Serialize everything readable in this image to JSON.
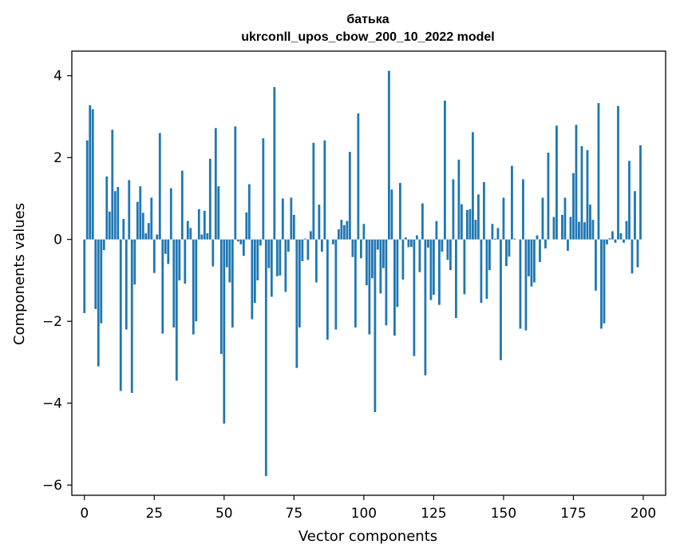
{
  "chart_data": {
    "type": "bar",
    "title": "батька",
    "subtitle": "ukrconll_upos_cbow_200_10_2022 model",
    "xlabel": "Vector components",
    "ylabel": "Components values",
    "xlim": [
      -4.5,
      208
    ],
    "ylim": [
      -6.25,
      4.6
    ],
    "xticks": [
      0,
      25,
      50,
      75,
      100,
      125,
      150,
      175,
      200
    ],
    "yticks": [
      -6,
      -4,
      -2,
      0,
      2,
      4
    ],
    "ytick_labels": [
      "−6",
      "−4",
      "−2",
      "0",
      "2",
      "4"
    ],
    "grid": false,
    "bar_color": "#1f77b4",
    "values": [
      -1.8,
      2.42,
      3.28,
      3.18,
      -1.7,
      -3.1,
      -2.05,
      -0.26,
      1.54,
      0.68,
      2.68,
      1.18,
      1.28,
      -3.7,
      0.5,
      -2.2,
      1.45,
      -3.75,
      -1.1,
      0.92,
      1.3,
      0.65,
      0.15,
      0.4,
      1.02,
      -0.82,
      0.12,
      2.6,
      -2.3,
      -0.35,
      -0.6,
      1.25,
      -2.15,
      -3.45,
      -1.0,
      1.68,
      -1.08,
      0.45,
      0.28,
      -2.32,
      -2.0,
      0.74,
      0.12,
      0.7,
      0.15,
      1.97,
      -0.66,
      2.72,
      1.3,
      -2.8,
      -4.5,
      -0.68,
      -1.05,
      -2.15,
      2.76,
      -0.05,
      -0.12,
      -0.4,
      0.66,
      1.35,
      -1.95,
      -1.55,
      -1.0,
      -0.15,
      2.47,
      -5.78,
      -0.7,
      -1.4,
      3.72,
      -0.9,
      -0.88,
      1.0,
      -1.28,
      -0.3,
      1.02,
      0.6,
      -3.14,
      -2.15,
      -0.53,
      0.02,
      -0.5,
      0.2,
      2.36,
      -1.05,
      0.85,
      -0.3,
      2.42,
      -2.45,
      0.0,
      -0.12,
      -2.2,
      0.25,
      0.48,
      0.35,
      0.45,
      2.14,
      -0.43,
      -2.15,
      3.08,
      -0.46,
      0.38,
      -1.12,
      -2.32,
      -0.95,
      -4.22,
      -0.25,
      -1.32,
      -0.7,
      -2.1,
      4.12,
      1.22,
      -2.35,
      -1.65,
      1.38,
      -0.98,
      0.05,
      -0.19,
      -0.18,
      -2.85,
      0.1,
      -0.8,
      0.88,
      -3.32,
      -0.2,
      -1.48,
      -1.35,
      0.45,
      -1.6,
      -0.3,
      3.39,
      -0.5,
      -0.75,
      1.47,
      -1.92,
      1.95,
      0.86,
      -1.34,
      0.72,
      0.74,
      2.62,
      0.48,
      1.1,
      -1.55,
      1.4,
      -1.45,
      -0.75,
      0.38,
      0.02,
      0.28,
      -2.95,
      1.02,
      -0.65,
      -0.42,
      1.8,
      0.02,
      0.0,
      -2.18,
      1.47,
      -2.22,
      -0.9,
      -1.15,
      -1.05,
      0.1,
      -0.55,
      1.02,
      -0.22,
      2.12,
      0.0,
      0.55,
      2.78,
      0.0,
      0.6,
      1.02,
      -0.28,
      0.55,
      1.62,
      2.8,
      0.43,
      2.28,
      0.42,
      2.18,
      0.85,
      0.48,
      -1.25,
      3.33,
      -2.18,
      -2.05,
      -0.12,
      0.03,
      0.2,
      -0.08,
      3.26,
      0.15,
      -0.08,
      0.45,
      1.92,
      -0.83,
      1.18,
      -0.68,
      2.3
    ]
  }
}
